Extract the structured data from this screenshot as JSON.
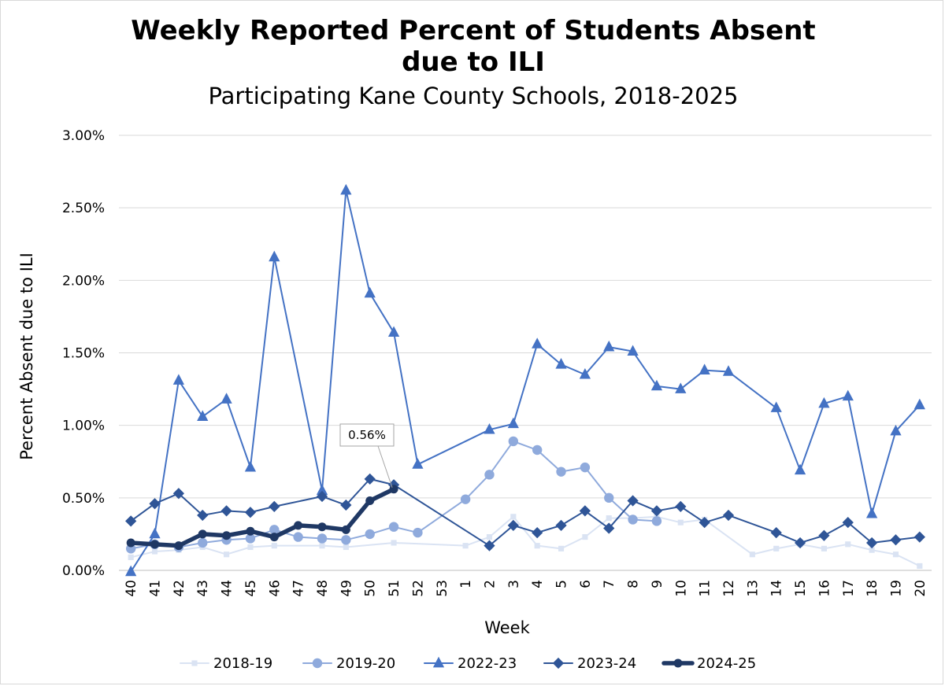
{
  "chart_data": {
    "type": "line",
    "title": "Weekly Reported Percent of Students Absent due to ILI",
    "title_lines": [
      "Weekly Reported Percent of Students Absent",
      "due to ILI"
    ],
    "subtitle": "Participating Kane County Schools, 2018-2025",
    "xlabel": "Week",
    "ylabel": "Percent Absent due to ILI",
    "categories": [
      "40",
      "41",
      "42",
      "43",
      "44",
      "45",
      "46",
      "47",
      "48",
      "49",
      "50",
      "51",
      "52",
      "53",
      "1",
      "2",
      "3",
      "4",
      "5",
      "6",
      "7",
      "8",
      "9",
      "10",
      "11",
      "12",
      "13",
      "14",
      "15",
      "16",
      "17",
      "18",
      "19",
      "20"
    ],
    "y_ticks": [
      "0.00%",
      "0.50%",
      "1.00%",
      "1.50%",
      "2.00%",
      "2.50%",
      "3.00%"
    ],
    "ylim": [
      0,
      3.0
    ],
    "grid": "horizontal",
    "legend_position": "bottom",
    "series": [
      {
        "name": "2018-19",
        "color": "#dae3f3",
        "marker": "square",
        "width": 2,
        "values": [
          0.09,
          0.13,
          0.14,
          0.16,
          0.11,
          0.16,
          0.17,
          null,
          0.17,
          0.16,
          null,
          0.19,
          null,
          null,
          0.17,
          0.23,
          0.37,
          0.17,
          0.15,
          0.23,
          0.36,
          0.36,
          0.37,
          0.33,
          0.35,
          null,
          0.11,
          0.15,
          0.18,
          0.15,
          0.18,
          0.14,
          0.11,
          0.03
        ]
      },
      {
        "name": "2019-20",
        "color": "#8faadc",
        "marker": "circle",
        "width": 2,
        "values": [
          0.15,
          0.18,
          0.16,
          0.19,
          0.21,
          0.22,
          0.28,
          0.23,
          0.22,
          0.21,
          0.25,
          0.3,
          0.26,
          null,
          0.49,
          0.66,
          0.89,
          0.83,
          0.68,
          0.71,
          0.5,
          0.35,
          0.34,
          null,
          null,
          null,
          null,
          null,
          null,
          null,
          null,
          null,
          null,
          null
        ]
      },
      {
        "name": "2022-23",
        "color": "#4472c4",
        "marker": "triangle",
        "width": 2,
        "values": [
          -0.01,
          0.25,
          1.31,
          1.06,
          1.18,
          0.71,
          2.16,
          null,
          0.55,
          2.62,
          1.91,
          1.64,
          0.73,
          null,
          null,
          0.97,
          1.01,
          1.56,
          1.42,
          1.35,
          1.54,
          1.51,
          1.27,
          1.25,
          1.38,
          1.37,
          null,
          1.12,
          0.69,
          1.15,
          1.2,
          0.39,
          0.96,
          1.14
        ]
      },
      {
        "name": "2023-24",
        "color": "#2f5597",
        "marker": "diamond",
        "width": 2,
        "values": [
          0.34,
          0.46,
          0.53,
          0.38,
          0.41,
          0.4,
          0.44,
          null,
          0.51,
          0.45,
          0.63,
          0.59,
          null,
          null,
          null,
          0.17,
          0.31,
          0.26,
          0.31,
          0.41,
          0.29,
          0.48,
          0.41,
          0.44,
          0.33,
          0.38,
          null,
          0.26,
          0.19,
          0.24,
          0.33,
          0.19,
          0.21,
          0.23
        ]
      },
      {
        "name": "2024-25",
        "color": "#1f3864",
        "marker": "circle",
        "width": 5.5,
        "values": [
          0.19,
          0.18,
          0.17,
          0.25,
          0.24,
          0.27,
          0.23,
          0.31,
          0.3,
          0.28,
          0.48,
          0.56,
          null,
          null,
          null,
          null,
          null,
          null,
          null,
          null,
          null,
          null,
          null,
          null,
          null,
          null,
          null,
          null,
          null,
          null,
          null,
          null,
          null,
          null
        ]
      }
    ],
    "annotations": [
      {
        "text": "0.56%",
        "category": "51",
        "value": 0.56,
        "series": "2024-25"
      }
    ]
  }
}
